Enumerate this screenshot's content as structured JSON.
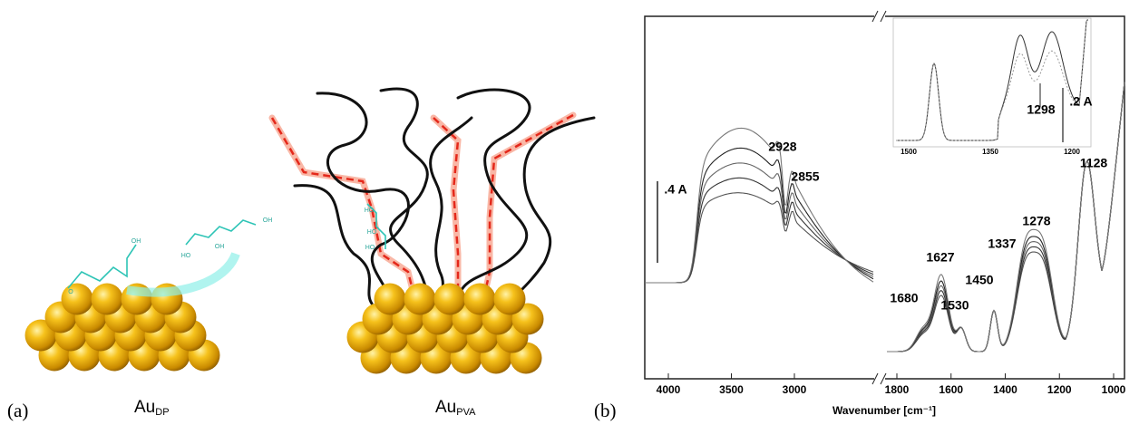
{
  "panel_a": {
    "label": "(a)",
    "particles": [
      {
        "name": "Au",
        "subscript": "DP"
      },
      {
        "name": "Au",
        "subscript": "PVA"
      }
    ],
    "molecule_labels": [
      "OH",
      "O",
      "HO",
      "OH",
      "OH",
      "HO",
      "HO",
      "HO"
    ]
  },
  "panel_b": {
    "label": "(b)",
    "x_axis_title": "Wavenumber [cm⁻¹]",
    "xticks_left": [
      4000,
      3500,
      3000
    ],
    "xticks_right": [
      1800,
      1600,
      1400,
      1200,
      1000
    ],
    "scale_bar": ".4 A",
    "peaks": [
      2928,
      2855,
      1680,
      1627,
      1530,
      1450,
      1337,
      1278,
      1128
    ],
    "inset": {
      "xticks": [
        1500,
        1350,
        1200
      ],
      "peak": 1298,
      "scale_bar": ".2 A"
    }
  }
}
